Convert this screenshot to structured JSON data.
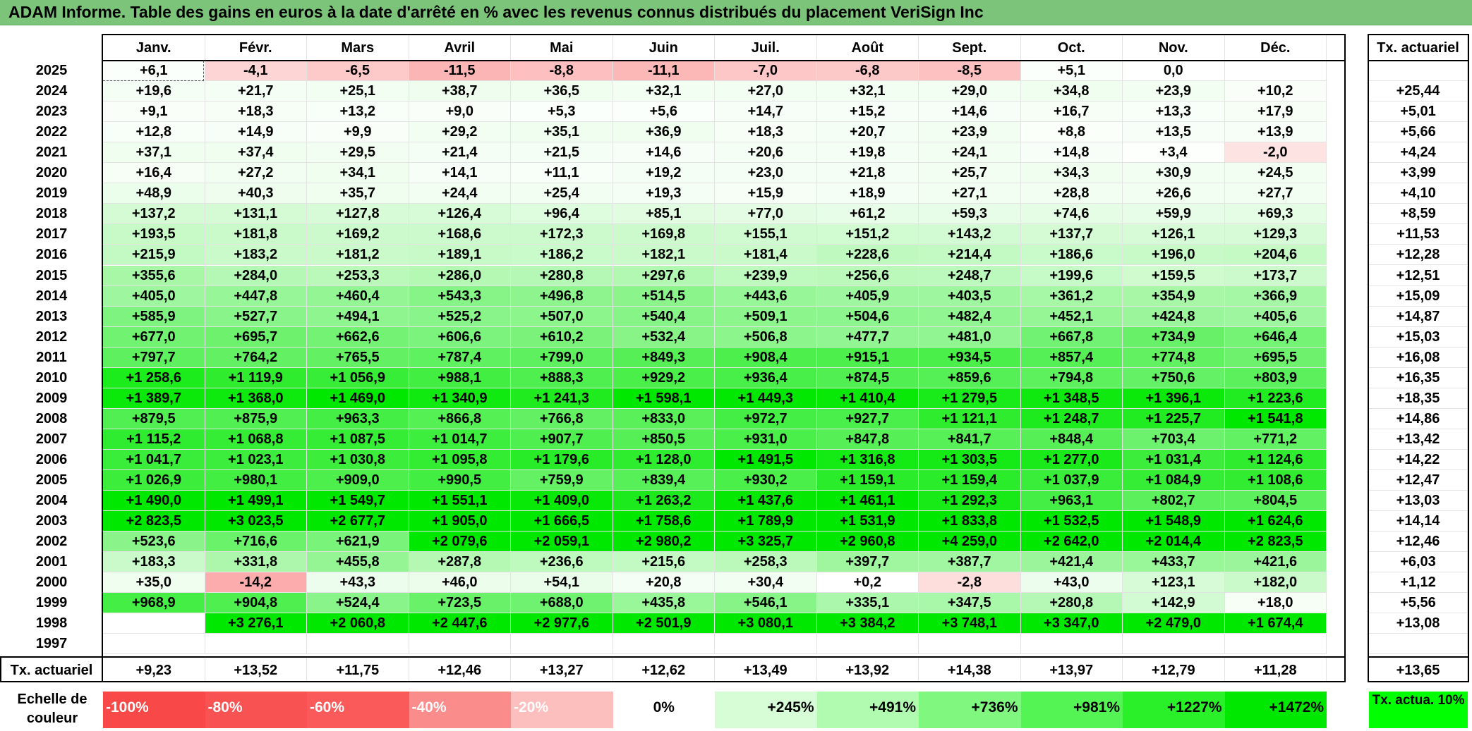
{
  "title": "ADAM Informe. Table des gains en euros à la date d'arrêté en % avec les revenus connus distribués du placement VeriSign Inc",
  "colors": {
    "title_bg": "#7cc47a",
    "neg_strong": "#f84848",
    "pos_strong": "#00ff00"
  },
  "chart_data": {
    "type": "heatmap",
    "title": "ADAM Informe. Table des gains en euros à la date d'arrêté en % avec les revenus connus distribués du placement VeriSign Inc",
    "months": [
      "Janv.",
      "Févr.",
      "Mars",
      "Avril",
      "Mai",
      "Juin",
      "Juil.",
      "Août",
      "Sept.",
      "Oct.",
      "Nov.",
      "Déc."
    ],
    "tx_header": "Tx. actuariel",
    "rows": [
      {
        "year": "2025",
        "values": [
          "+6,1",
          "-4,1",
          "-6,5",
          "-11,5",
          "-8,8",
          "-11,1",
          "-7,0",
          "-6,8",
          "-8,5",
          "+5,1",
          "0,0",
          ""
        ],
        "tx": ""
      },
      {
        "year": "2024",
        "values": [
          "+19,6",
          "+21,7",
          "+25,1",
          "+38,7",
          "+36,5",
          "+32,1",
          "+27,0",
          "+32,1",
          "+29,0",
          "+34,8",
          "+23,9",
          "+10,2"
        ],
        "tx": "+25,44"
      },
      {
        "year": "2023",
        "values": [
          "+9,1",
          "+18,3",
          "+13,2",
          "+9,0",
          "+5,3",
          "+5,6",
          "+14,7",
          "+15,2",
          "+14,6",
          "+16,7",
          "+13,3",
          "+17,9"
        ],
        "tx": "+5,01"
      },
      {
        "year": "2022",
        "values": [
          "+12,8",
          "+14,9",
          "+9,9",
          "+29,2",
          "+35,1",
          "+36,9",
          "+18,3",
          "+20,7",
          "+23,9",
          "+8,8",
          "+13,5",
          "+13,9"
        ],
        "tx": "+5,66"
      },
      {
        "year": "2021",
        "values": [
          "+37,1",
          "+37,4",
          "+29,5",
          "+21,4",
          "+21,5",
          "+14,6",
          "+20,6",
          "+19,8",
          "+24,1",
          "+14,8",
          "+3,4",
          "-2,0"
        ],
        "tx": "+4,24"
      },
      {
        "year": "2020",
        "values": [
          "+16,4",
          "+27,2",
          "+34,1",
          "+14,1",
          "+11,1",
          "+19,2",
          "+23,0",
          "+21,8",
          "+25,7",
          "+34,3",
          "+30,9",
          "+24,5"
        ],
        "tx": "+3,99"
      },
      {
        "year": "2019",
        "values": [
          "+48,9",
          "+40,3",
          "+35,7",
          "+24,4",
          "+25,4",
          "+19,3",
          "+15,9",
          "+18,9",
          "+27,1",
          "+28,8",
          "+26,6",
          "+27,7"
        ],
        "tx": "+4,10"
      },
      {
        "year": "2018",
        "values": [
          "+137,2",
          "+131,1",
          "+127,8",
          "+126,4",
          "+96,4",
          "+85,1",
          "+77,0",
          "+61,2",
          "+59,3",
          "+74,6",
          "+59,9",
          "+69,3"
        ],
        "tx": "+8,59"
      },
      {
        "year": "2017",
        "values": [
          "+193,5",
          "+181,8",
          "+169,2",
          "+168,6",
          "+172,3",
          "+169,8",
          "+155,1",
          "+151,2",
          "+143,2",
          "+137,7",
          "+126,1",
          "+129,3"
        ],
        "tx": "+11,53"
      },
      {
        "year": "2016",
        "values": [
          "+215,9",
          "+183,2",
          "+181,2",
          "+189,1",
          "+186,2",
          "+182,1",
          "+181,4",
          "+228,6",
          "+214,4",
          "+186,6",
          "+196,0",
          "+204,6"
        ],
        "tx": "+12,28"
      },
      {
        "year": "2015",
        "values": [
          "+355,6",
          "+284,0",
          "+253,3",
          "+286,0",
          "+280,8",
          "+297,6",
          "+239,9",
          "+256,6",
          "+248,7",
          "+199,6",
          "+159,5",
          "+173,7"
        ],
        "tx": "+12,51"
      },
      {
        "year": "2014",
        "values": [
          "+405,0",
          "+447,8",
          "+460,4",
          "+543,3",
          "+496,8",
          "+514,5",
          "+443,6",
          "+405,9",
          "+403,5",
          "+361,2",
          "+354,9",
          "+366,9"
        ],
        "tx": "+15,09"
      },
      {
        "year": "2013",
        "values": [
          "+585,9",
          "+527,7",
          "+494,1",
          "+525,2",
          "+507,0",
          "+540,4",
          "+509,1",
          "+504,6",
          "+482,4",
          "+452,1",
          "+424,8",
          "+405,6"
        ],
        "tx": "+14,87"
      },
      {
        "year": "2012",
        "values": [
          "+677,0",
          "+695,7",
          "+662,6",
          "+606,6",
          "+610,2",
          "+532,4",
          "+506,8",
          "+477,7",
          "+481,0",
          "+667,8",
          "+734,9",
          "+646,4"
        ],
        "tx": "+15,03"
      },
      {
        "year": "2011",
        "values": [
          "+797,7",
          "+764,2",
          "+765,5",
          "+787,4",
          "+799,0",
          "+849,3",
          "+908,4",
          "+915,1",
          "+934,5",
          "+857,4",
          "+774,8",
          "+695,5"
        ],
        "tx": "+16,08"
      },
      {
        "year": "2010",
        "values": [
          "+1 258,6",
          "+1 119,9",
          "+1 056,9",
          "+988,1",
          "+888,3",
          "+929,2",
          "+936,4",
          "+874,5",
          "+859,6",
          "+794,8",
          "+750,6",
          "+803,9"
        ],
        "tx": "+16,35"
      },
      {
        "year": "2009",
        "values": [
          "+1 389,7",
          "+1 368,0",
          "+1 469,0",
          "+1 340,9",
          "+1 241,3",
          "+1 598,1",
          "+1 449,3",
          "+1 410,4",
          "+1 279,5",
          "+1 348,5",
          "+1 396,1",
          "+1 223,6"
        ],
        "tx": "+18,35"
      },
      {
        "year": "2008",
        "values": [
          "+879,5",
          "+875,9",
          "+963,3",
          "+866,8",
          "+766,8",
          "+833,0",
          "+972,7",
          "+927,7",
          "+1 121,1",
          "+1 248,7",
          "+1 225,7",
          "+1 541,8"
        ],
        "tx": "+14,86"
      },
      {
        "year": "2007",
        "values": [
          "+1 115,2",
          "+1 068,8",
          "+1 087,5",
          "+1 014,7",
          "+907,7",
          "+850,5",
          "+931,0",
          "+847,8",
          "+841,7",
          "+848,4",
          "+703,4",
          "+771,2"
        ],
        "tx": "+13,42"
      },
      {
        "year": "2006",
        "values": [
          "+1 041,7",
          "+1 023,1",
          "+1 030,8",
          "+1 095,8",
          "+1 179,6",
          "+1 128,0",
          "+1 491,5",
          "+1 316,8",
          "+1 303,5",
          "+1 277,0",
          "+1 031,4",
          "+1 124,6"
        ],
        "tx": "+14,22"
      },
      {
        "year": "2005",
        "values": [
          "+1 026,9",
          "+980,1",
          "+909,0",
          "+990,5",
          "+759,9",
          "+839,4",
          "+930,2",
          "+1 159,1",
          "+1 159,4",
          "+1 037,9",
          "+1 084,9",
          "+1 108,6"
        ],
        "tx": "+12,47"
      },
      {
        "year": "2004",
        "values": [
          "+1 490,0",
          "+1 499,1",
          "+1 549,7",
          "+1 551,1",
          "+1 409,0",
          "+1 263,2",
          "+1 437,6",
          "+1 461,1",
          "+1 292,3",
          "+963,1",
          "+802,7",
          "+804,5"
        ],
        "tx": "+13,03"
      },
      {
        "year": "2003",
        "values": [
          "+2 823,5",
          "+3 023,5",
          "+2 677,7",
          "+1 905,0",
          "+1 666,5",
          "+1 758,6",
          "+1 789,9",
          "+1 531,9",
          "+1 833,8",
          "+1 532,5",
          "+1 548,9",
          "+1 624,6"
        ],
        "tx": "+14,14"
      },
      {
        "year": "2002",
        "values": [
          "+523,6",
          "+716,6",
          "+621,9",
          "+2 079,6",
          "+2 059,1",
          "+2 980,2",
          "+3 325,7",
          "+2 960,8",
          "+4 259,0",
          "+2 642,0",
          "+2 014,4",
          "+2 823,5"
        ],
        "tx": "+12,46"
      },
      {
        "year": "2001",
        "values": [
          "+183,3",
          "+331,8",
          "+455,8",
          "+287,8",
          "+236,6",
          "+215,6",
          "+258,3",
          "+397,7",
          "+387,7",
          "+421,4",
          "+433,7",
          "+421,6"
        ],
        "tx": "+6,03"
      },
      {
        "year": "2000",
        "values": [
          "+35,0",
          "-14,2",
          "+43,3",
          "+46,0",
          "+54,1",
          "+20,8",
          "+30,4",
          "+0,2",
          "-2,8",
          "+43,0",
          "+123,1",
          "+182,0"
        ],
        "tx": "+1,12"
      },
      {
        "year": "1999",
        "values": [
          "+968,9",
          "+904,8",
          "+524,4",
          "+723,5",
          "+688,0",
          "+435,8",
          "+546,1",
          "+335,1",
          "+347,5",
          "+280,8",
          "+142,9",
          "+18,0"
        ],
        "tx": "+5,56"
      },
      {
        "year": "1998",
        "values": [
          "",
          "+3 276,1",
          "+2 060,8",
          "+2 447,6",
          "+2 977,6",
          "+2 501,9",
          "+3 080,1",
          "+3 384,2",
          "+3 748,1",
          "+3 347,0",
          "+2 479,0",
          "+1 674,4"
        ],
        "tx": "+13,08"
      },
      {
        "year": "1997",
        "values": [
          "",
          "",
          "",
          "",
          "",
          "",
          "",
          "",
          "",
          "",
          "",
          ""
        ],
        "tx": ""
      }
    ],
    "footer": {
      "label": "Tx. actuariel",
      "values": [
        "+9,23",
        "+13,52",
        "+11,75",
        "+12,46",
        "+13,27",
        "+12,62",
        "+13,49",
        "+13,92",
        "+14,38",
        "+13,97",
        "+12,79",
        "+11,28"
      ],
      "tx": "+13,65"
    },
    "scale": {
      "label": "Echelle de couleur",
      "items": [
        {
          "text": "-100%",
          "value": -100,
          "color": "#f84848"
        },
        {
          "text": "-80%",
          "value": -80,
          "color": "#f95252"
        },
        {
          "text": "-60%",
          "value": -60,
          "color": "#fa5a5a"
        },
        {
          "text": "-40%",
          "value": -40,
          "color": "#fb8c8c"
        },
        {
          "text": "-20%",
          "value": -20,
          "color": "#fdbebe"
        },
        {
          "text": "0%",
          "value": 0,
          "color": "#ffffff"
        },
        {
          "text": "+245%",
          "value": 245,
          "color": "#d6fdd6"
        },
        {
          "text": "+491%",
          "value": 491,
          "color": "#b0fbb0"
        },
        {
          "text": "+736%",
          "value": 736,
          "color": "#80f880"
        },
        {
          "text": "+981%",
          "value": 981,
          "color": "#55f455"
        },
        {
          "text": "+1227%",
          "value": 1227,
          "color": "#2af02a"
        },
        {
          "text": "+1472%",
          "value": 1472,
          "color": "#00e800"
        }
      ],
      "tx_legend": "Tx. actua. 10%"
    }
  }
}
